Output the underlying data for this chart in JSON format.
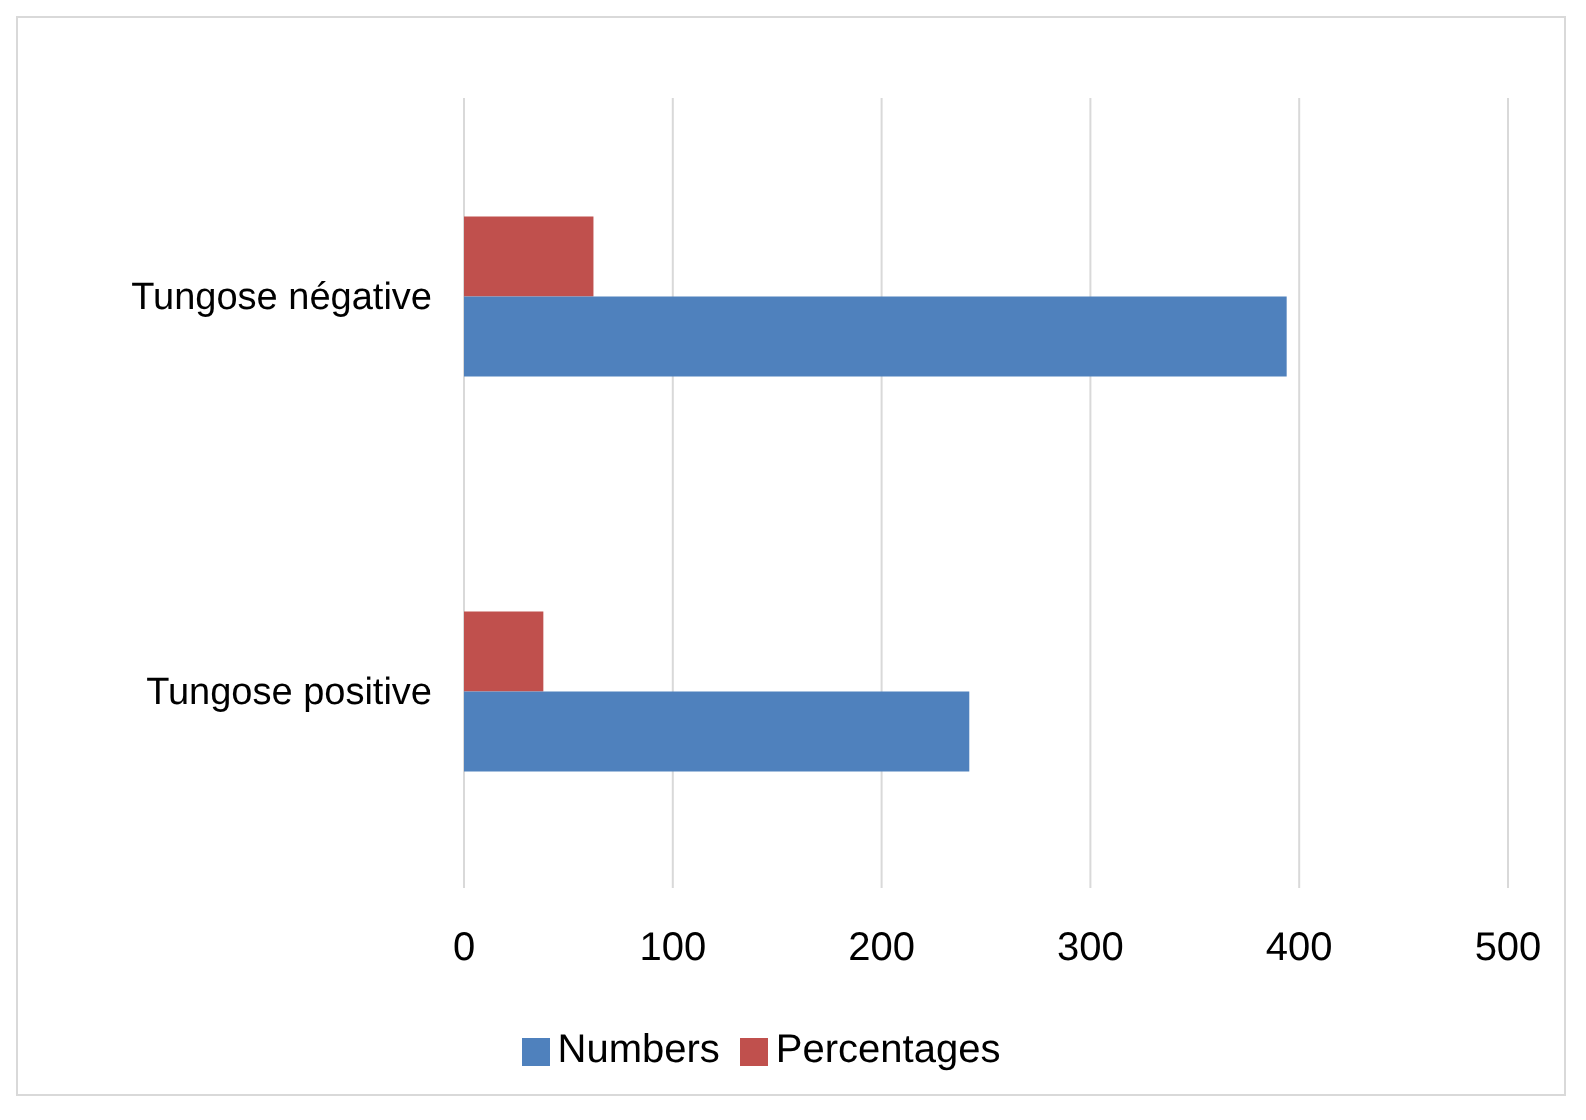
{
  "chart_data": {
    "type": "bar",
    "orientation": "horizontal",
    "categories": [
      "Tungose négative",
      "Tungose positive"
    ],
    "series": [
      {
        "name": "Percentages",
        "color": "#c0504d",
        "values": [
          62,
          38
        ]
      },
      {
        "name": "Numbers",
        "color": "#4f81bd",
        "values": [
          394,
          242
        ]
      }
    ],
    "xlim": [
      0,
      500
    ],
    "xticks": [
      0,
      100,
      200,
      300,
      400,
      500
    ],
    "grid": "x",
    "legend": "bottom"
  }
}
